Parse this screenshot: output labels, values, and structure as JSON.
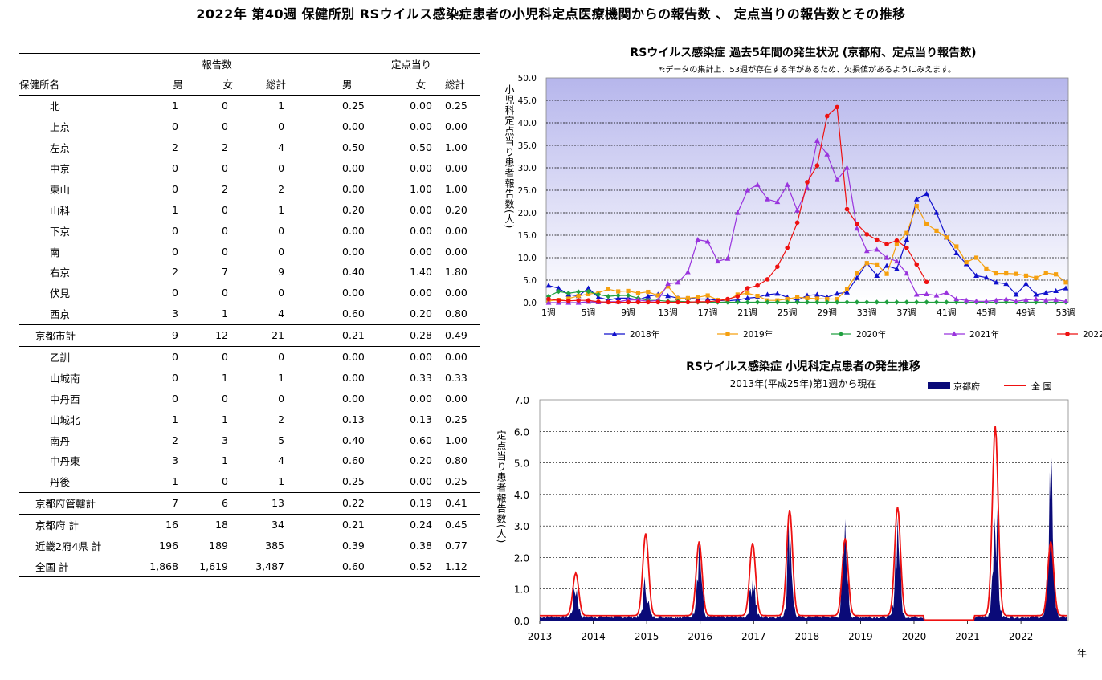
{
  "page_title": "2022年 第40週 保健所別 RSウイルス感染症患者の小児科定点医療機関からの報告数 、 定点当りの報告数とその推移",
  "table": {
    "group_headers": [
      "報告数",
      "定点当り"
    ],
    "columns": [
      "保健所名",
      "男",
      "女",
      "総計",
      "男",
      "女",
      "総計"
    ],
    "rows": [
      {
        "name": "北",
        "indent": true,
        "values": [
          "1",
          "0",
          "1",
          "0.25",
          "0.00",
          "0.25"
        ]
      },
      {
        "name": "上京",
        "indent": true,
        "values": [
          "0",
          "0",
          "0",
          "0.00",
          "0.00",
          "0.00"
        ]
      },
      {
        "name": "左京",
        "indent": true,
        "values": [
          "2",
          "2",
          "4",
          "0.50",
          "0.50",
          "1.00"
        ]
      },
      {
        "name": "中京",
        "indent": true,
        "values": [
          "0",
          "0",
          "0",
          "0.00",
          "0.00",
          "0.00"
        ]
      },
      {
        "name": "東山",
        "indent": true,
        "values": [
          "0",
          "2",
          "2",
          "0.00",
          "1.00",
          "1.00"
        ]
      },
      {
        "name": "山科",
        "indent": true,
        "values": [
          "1",
          "0",
          "1",
          "0.20",
          "0.00",
          "0.20"
        ]
      },
      {
        "name": "下京",
        "indent": true,
        "values": [
          "0",
          "0",
          "0",
          "0.00",
          "0.00",
          "0.00"
        ]
      },
      {
        "name": "南",
        "indent": true,
        "values": [
          "0",
          "0",
          "0",
          "0.00",
          "0.00",
          "0.00"
        ]
      },
      {
        "name": "右京",
        "indent": true,
        "values": [
          "2",
          "7",
          "9",
          "0.40",
          "1.40",
          "1.80"
        ]
      },
      {
        "name": "伏見",
        "indent": true,
        "values": [
          "0",
          "0",
          "0",
          "0.00",
          "0.00",
          "0.00"
        ]
      },
      {
        "name": "西京",
        "indent": true,
        "values": [
          "3",
          "1",
          "4",
          "0.60",
          "0.20",
          "0.80"
        ],
        "line": true
      },
      {
        "name": "京都市計",
        "indent": false,
        "values": [
          "9",
          "12",
          "21",
          "0.21",
          "0.28",
          "0.49"
        ],
        "line": true
      },
      {
        "name": "乙訓",
        "indent": true,
        "values": [
          "0",
          "0",
          "0",
          "0.00",
          "0.00",
          "0.00"
        ]
      },
      {
        "name": "山城南",
        "indent": true,
        "values": [
          "0",
          "1",
          "1",
          "0.00",
          "0.33",
          "0.33"
        ]
      },
      {
        "name": "中丹西",
        "indent": true,
        "values": [
          "0",
          "0",
          "0",
          "0.00",
          "0.00",
          "0.00"
        ]
      },
      {
        "name": "山城北",
        "indent": true,
        "values": [
          "1",
          "1",
          "2",
          "0.13",
          "0.13",
          "0.25"
        ]
      },
      {
        "name": "南丹",
        "indent": true,
        "values": [
          "2",
          "3",
          "5",
          "0.40",
          "0.60",
          "1.00"
        ]
      },
      {
        "name": "中丹東",
        "indent": true,
        "values": [
          "3",
          "1",
          "4",
          "0.60",
          "0.20",
          "0.80"
        ]
      },
      {
        "name": "丹後",
        "indent": true,
        "values": [
          "1",
          "0",
          "1",
          "0.25",
          "0.00",
          "0.25"
        ],
        "line": true
      },
      {
        "name": "京都府管轄計",
        "indent": false,
        "values": [
          "7",
          "6",
          "13",
          "0.22",
          "0.19",
          "0.41"
        ],
        "line": true
      },
      {
        "name": "京都府 計",
        "indent": false,
        "values": [
          "16",
          "18",
          "34",
          "0.21",
          "0.24",
          "0.45"
        ]
      },
      {
        "name": "近畿2府4県 計",
        "indent": false,
        "values": [
          "196",
          "189",
          "385",
          "0.39",
          "0.38",
          "0.77"
        ]
      },
      {
        "name": "全国 計",
        "indent": false,
        "values": [
          "1,868",
          "1,619",
          "3,487",
          "0.60",
          "0.52",
          "1.12"
        ],
        "line": true
      }
    ]
  },
  "chart_data": [
    {
      "type": "line",
      "title": "RSウイルス感染症 過去5年間の発生状況 (京都府、定点当り報告数)",
      "note": "*:データの集計上、53週が存在する年があるため、欠損値があるようにみえます。",
      "ylabel": "小児科定点当り患者報告数(人)",
      "ylim": [
        0,
        50
      ],
      "yticks": [
        "0.0",
        "5.0",
        "10.0",
        "15.0",
        "20.0",
        "25.0",
        "30.0",
        "35.0",
        "40.0",
        "45.0",
        "50.0"
      ],
      "xticks": [
        "1週",
        "5週",
        "9週",
        "13週",
        "17週",
        "21週",
        "25週",
        "29週",
        "33週",
        "37週",
        "41週",
        "45週",
        "49週",
        "53週"
      ],
      "series": [
        {
          "name": "2018年",
          "color": "#1010cc",
          "marker": "triangle",
          "values": [
            3.8,
            3.2,
            1.8,
            1.5,
            3.2,
            1.2,
            0.6,
            1.0,
            1.0,
            0.6,
            1.4,
            1.8,
            1.5,
            1.0,
            1.0,
            0.8,
            0.8,
            0.5,
            0.4,
            0.6,
            1.0,
            1.2,
            1.8,
            2.0,
            1.2,
            0.5,
            1.6,
            1.8,
            1.2,
            2.0,
            2.3,
            5.5,
            8.8,
            6.0,
            8.2,
            7.5,
            14.0,
            23.0,
            24.2,
            20.0,
            14.5,
            11.0,
            8.6,
            6.0,
            5.6,
            4.5,
            4.2,
            1.8,
            4.2,
            1.8,
            2.2,
            2.6,
            3.2
          ]
        },
        {
          "name": "2019年",
          "color": "#f5a010",
          "marker": "square",
          "values": [
            0.4,
            0.6,
            0.9,
            1.5,
            1.9,
            2.2,
            3.0,
            2.5,
            2.6,
            2.1,
            2.4,
            1.6,
            3.6,
            1.0,
            1.0,
            1.2,
            1.6,
            0.6,
            0.5,
            1.8,
            2.1,
            1.5,
            0.5,
            0.5,
            0.8,
            1.2,
            1.0,
            0.9,
            0.8,
            0.8,
            3.0,
            6.5,
            8.8,
            8.5,
            6.4,
            13.0,
            15.5,
            21.5,
            17.5,
            16.0,
            14.5,
            12.5,
            9.0,
            10.0,
            7.6,
            6.5,
            6.5,
            6.4,
            6.0,
            5.5,
            6.6,
            6.3,
            4.5
          ]
        },
        {
          "name": "2020年",
          "color": "#20a040",
          "marker": "diamond",
          "values": [
            1.4,
            2.5,
            2.1,
            2.4,
            2.5,
            1.8,
            1.4,
            1.6,
            1.6,
            1.0,
            0.5,
            0.5,
            0.3,
            0.3,
            0.2,
            0.1,
            0.1,
            0.1,
            0.1,
            0.1,
            0.1,
            0.1,
            0.1,
            0.1,
            0.1,
            0.1,
            0.1,
            0.1,
            0.1,
            0.1,
            0.1,
            0.1,
            0.1,
            0.1,
            0.1,
            0.1,
            0.1,
            0.1,
            0.1,
            0.1,
            0.1,
            0.1,
            0.1,
            0.1,
            0.1,
            0.1,
            0.1,
            0.1,
            0.1,
            0.1,
            0.1,
            0.1,
            0.1
          ]
        },
        {
          "name": "2021年",
          "color": "#9933dd",
          "marker": "triangle",
          "values": [
            0.0,
            0.0,
            0.0,
            0.0,
            0.2,
            0.1,
            0.2,
            0.2,
            0.6,
            0.6,
            0.3,
            0.5,
            4.2,
            4.5,
            6.8,
            14.0,
            13.6,
            9.2,
            9.8,
            20.0,
            25.0,
            26.2,
            23.0,
            22.4,
            26.2,
            20.5,
            25.5,
            36.0,
            33.0,
            27.3,
            30.0,
            16.5,
            11.5,
            11.8,
            10.0,
            9.2,
            6.5,
            1.8,
            1.9,
            1.6,
            2.2,
            0.8,
            0.5,
            0.3,
            0.3,
            0.5,
            0.8,
            0.3,
            0.6,
            0.8,
            0.5,
            0.6,
            0.3
          ]
        },
        {
          "name": "2022年",
          "color": "#ee1111",
          "marker": "circle",
          "values": [
            0.8,
            0.5,
            0.4,
            0.5,
            0.5,
            0.2,
            0.1,
            0.1,
            0.1,
            0.1,
            0.1,
            0.1,
            0.1,
            0.1,
            0.1,
            0.2,
            0.2,
            0.4,
            0.8,
            1.4,
            3.2,
            3.8,
            5.2,
            8.0,
            12.2,
            17.8,
            26.8,
            30.5,
            41.5,
            43.5,
            20.8,
            17.5,
            15.2,
            14.0,
            13.0,
            13.8,
            12.2,
            8.5,
            4.6
          ]
        }
      ]
    },
    {
      "type": "area",
      "title": "RSウイルス感染症 小児科定点患者の発生推移",
      "subtitle": "2013年(平成25年)第1週から現在",
      "ylabel": "定点当り患者報告数(人)",
      "xlabel": "年",
      "ylim": [
        0,
        7
      ],
      "yticks": [
        "0.0",
        "1.0",
        "2.0",
        "3.0",
        "4.0",
        "5.0",
        "6.0",
        "7.0"
      ],
      "xticks": [
        "2013",
        "2014",
        "2015",
        "2016",
        "2017",
        "2018",
        "2019",
        "2020",
        "2021",
        "2022"
      ],
      "series": [
        {
          "name": "京都府",
          "color": "#0a0a78",
          "kind": "area"
        },
        {
          "name": "全 国",
          "color": "#ee1111",
          "kind": "line"
        }
      ],
      "peaks": [
        {
          "year": 2013,
          "week": 36,
          "kyoto": 0.9,
          "national": 1.35
        },
        {
          "year": 2014,
          "week": 52,
          "kyoto": 1.0,
          "national": 2.6
        },
        {
          "year": 2015,
          "week": 52,
          "kyoto": 2.2,
          "national": 2.35
        },
        {
          "year": 2016,
          "week": 52,
          "kyoto": 1.3,
          "national": 2.3
        },
        {
          "year": 2017,
          "week": 36,
          "kyoto": 2.6,
          "national": 3.35
        },
        {
          "year": 2018,
          "week": 38,
          "kyoto": 2.3,
          "national": 2.45
        },
        {
          "year": 2019,
          "week": 37,
          "kyoto": 2.8,
          "national": 3.45
        },
        {
          "year": 2021,
          "week": 28,
          "kyoto": 3.5,
          "national": 6.0
        },
        {
          "year": 2022,
          "week": 30,
          "kyoto": 4.35,
          "national": 2.35
        }
      ]
    }
  ]
}
